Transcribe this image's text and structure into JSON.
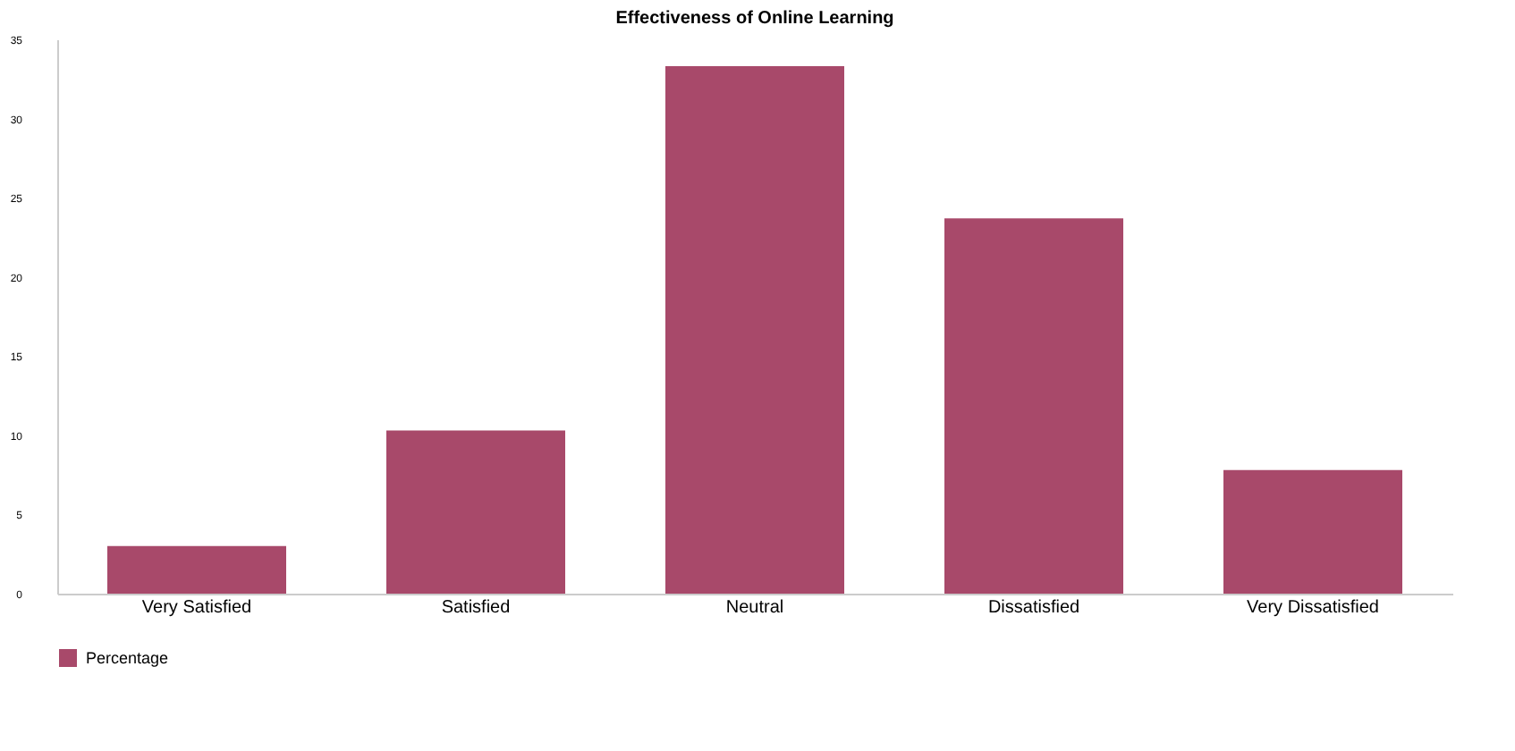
{
  "chart_data": {
    "type": "bar",
    "title": "Effectiveness of Online Learning",
    "categories": [
      "Very Satisfied",
      "Satisfied",
      "Neutral",
      "Dissatisfied",
      "Very Dissatisfied"
    ],
    "series": [
      {
        "name": "Percentage",
        "color": "#a8496a",
        "values": [
          3,
          10.3,
          33.3,
          23.7,
          7.8
        ]
      }
    ],
    "ylim": [
      0,
      35
    ],
    "yticks": [
      0,
      5,
      10,
      15,
      20,
      25,
      30,
      35
    ],
    "grid": false,
    "legend": "bottom"
  }
}
